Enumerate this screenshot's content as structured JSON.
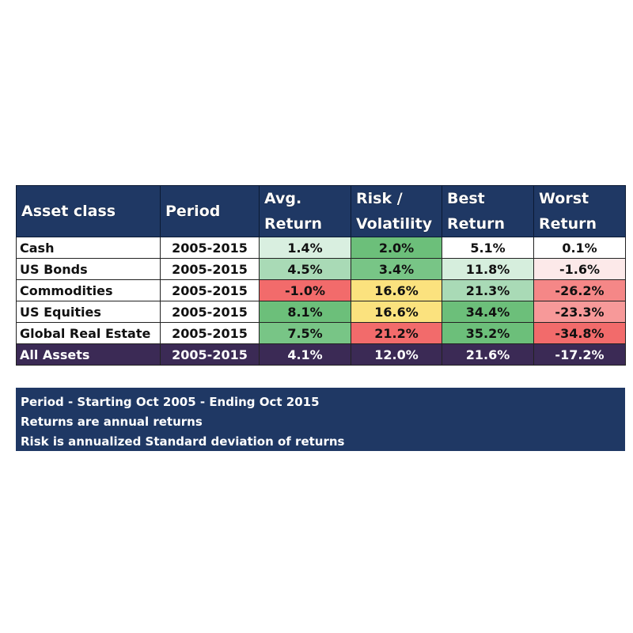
{
  "chart_data": {
    "type": "table",
    "columns": [
      "Asset class",
      "Period",
      "Avg. Return",
      "Risk / Volatility",
      "Best Return",
      "Worst Return"
    ],
    "header_lines": [
      [
        "Asset class"
      ],
      [
        "Period"
      ],
      [
        "Avg.",
        "Return"
      ],
      [
        "Risk /",
        "Volatility"
      ],
      [
        "Best",
        "Return"
      ],
      [
        "Worst",
        "Return"
      ]
    ],
    "rows": [
      {
        "asset": "Cash",
        "period": "2005-2015",
        "avg_return": "1.4%",
        "risk": "2.0%",
        "best": "5.1%",
        "worst": "0.1%"
      },
      {
        "asset": "US Bonds",
        "period": "2005-2015",
        "avg_return": "4.5%",
        "risk": "3.4%",
        "best": "11.8%",
        "worst": "-1.6%"
      },
      {
        "asset": "Commodities",
        "period": "2005-2015",
        "avg_return": "-1.0%",
        "risk": "16.6%",
        "best": "21.3%",
        "worst": "-26.2%"
      },
      {
        "asset": "US Equities",
        "period": "2005-2015",
        "avg_return": "8.1%",
        "risk": "16.6%",
        "best": "34.4%",
        "worst": "-23.3%"
      },
      {
        "asset": "Global Real Estate",
        "period": "2005-2015",
        "avg_return": "7.5%",
        "risk": "21.2%",
        "best": "35.2%",
        "worst": "-34.8%"
      }
    ],
    "total_row": {
      "asset": "All Assets",
      "period": "2005-2015",
      "avg_return": "4.1%",
      "risk": "12.0%",
      "best": "21.6%",
      "worst": "-17.2%"
    },
    "cell_colors": [
      [
        "#d9efe0",
        "#6cbf7a",
        "#ffffff",
        "#ffffff"
      ],
      [
        "#a9dab6",
        "#78c586",
        "#d6eedd",
        "#fce9e9"
      ],
      [
        "#f26b6b",
        "#fbe27e",
        "#a9dab6",
        "#f58787"
      ],
      [
        "#6cbf7a",
        "#fbe27e",
        "#6cbf7a",
        "#f79999"
      ],
      [
        "#78c586",
        "#f26b6b",
        "#6cbf7a",
        "#f26b6b"
      ]
    ]
  },
  "colors": {
    "header_bg": "#1f3864",
    "total_row_bg": "#3b2a55",
    "notes_bg": "#1f3864"
  },
  "notes": [
    "Period - Starting Oct 2005 - Ending Oct 2015",
    "Returns are annual returns",
    "Risk is annualized Standard deviation of returns"
  ]
}
